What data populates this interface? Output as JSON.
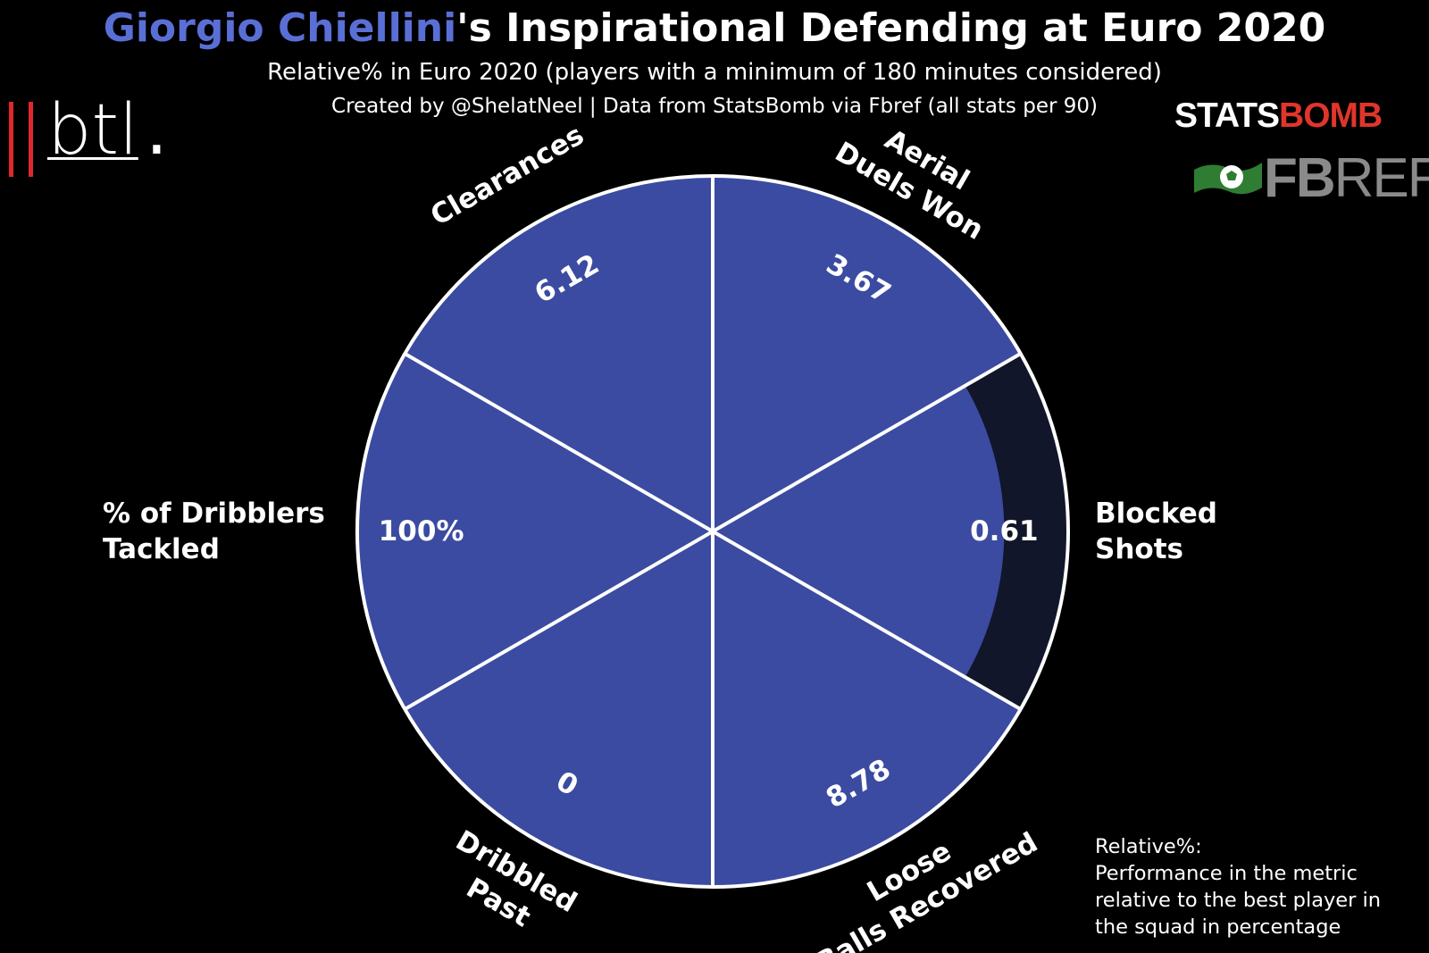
{
  "header": {
    "title_name": "Giorgio Chiellini",
    "title_rest": "'s Inspirational Defending at Euro 2020",
    "subtitle": "Relative% in Euro 2020 (players with a minimum of 180 minutes considered)",
    "credit": "Created by @ShelatNeel | Data from StatsBomb via Fbref (all stats per 90)"
  },
  "logos": {
    "btl_text": "btl",
    "btl_dot": ".",
    "statsbomb_stats": "STATS",
    "statsbomb_bomb": "BOMB",
    "fbref_fb": "FB",
    "fbref_ref": "REF"
  },
  "chart_data": {
    "type": "pie",
    "variant": "pizza / radial bar",
    "scale": "Relative% (0-100)",
    "range": [
      0,
      100
    ],
    "colors": {
      "slice": "#3b4ba1",
      "empty": "#12162b",
      "edge": "#ffffff",
      "background": "#000000"
    },
    "params": [
      {
        "label": "Aerial Duels Won",
        "value_label": "3.67",
        "relative_pct": 100
      },
      {
        "label": "Blocked Shots",
        "value_label": "0.61",
        "relative_pct": 82
      },
      {
        "label": "Loose Balls Recovered",
        "value_label": "8.78",
        "relative_pct": 100
      },
      {
        "label": "Dribbled Past",
        "value_label": "0",
        "relative_pct": 100
      },
      {
        "label": "% of Dribblers Tackled",
        "value_label": "100%",
        "relative_pct": 100
      },
      {
        "label": "Clearances",
        "value_label": "6.12",
        "relative_pct": 100
      }
    ]
  },
  "note": {
    "heading": "Relative%:",
    "body": "Performance in the metric relative to the best player in the squad in percentage"
  }
}
